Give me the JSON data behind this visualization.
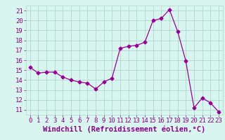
{
  "x": [
    0,
    1,
    2,
    3,
    4,
    5,
    6,
    7,
    8,
    9,
    10,
    11,
    12,
    13,
    14,
    15,
    16,
    17,
    18,
    19,
    20,
    21,
    22,
    23
  ],
  "y": [
    15.3,
    14.7,
    14.8,
    14.8,
    14.3,
    14.0,
    13.8,
    13.7,
    13.1,
    13.8,
    14.2,
    17.2,
    17.4,
    17.5,
    17.8,
    20.0,
    20.2,
    21.1,
    18.9,
    15.9,
    11.2,
    12.2,
    11.7,
    10.8
  ],
  "line_color": "#990099",
  "marker": "D",
  "marker_size": 2.5,
  "bg_color": "#d8f5f0",
  "grid_color": "#b0d8cc",
  "xlabel": "Windchill (Refroidissement éolien,°C)",
  "xlim": [
    -0.5,
    23.5
  ],
  "ylim": [
    10.5,
    21.5
  ],
  "yticks": [
    11,
    12,
    13,
    14,
    15,
    16,
    17,
    18,
    19,
    20,
    21
  ],
  "xticks": [
    0,
    1,
    2,
    3,
    4,
    5,
    6,
    7,
    8,
    9,
    10,
    11,
    12,
    13,
    14,
    15,
    16,
    17,
    18,
    19,
    20,
    21,
    22,
    23
  ],
  "tick_color": "#880088",
  "label_color": "#880088",
  "font_size": 6.5,
  "xlabel_fontsize": 7.5
}
